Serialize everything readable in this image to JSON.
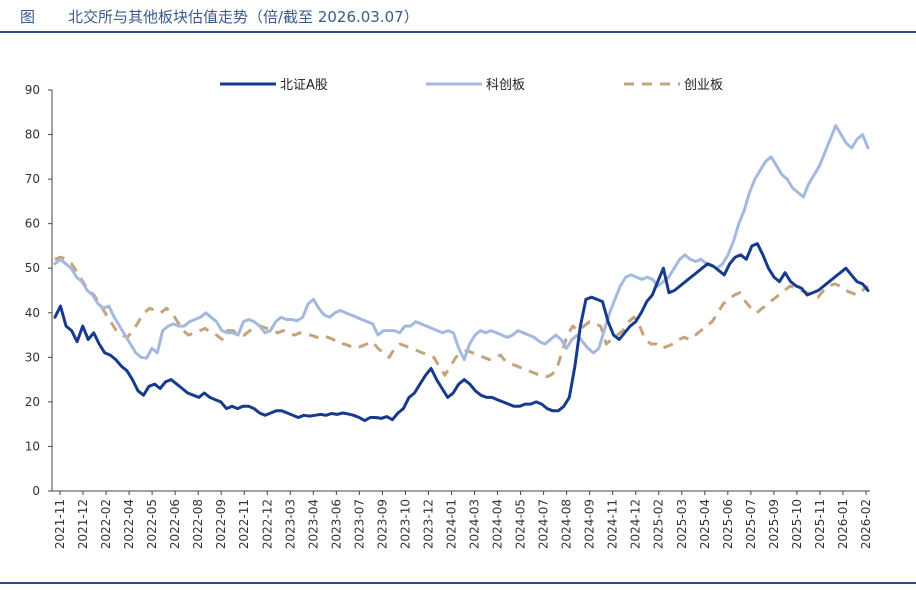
{
  "header": {
    "figure_label": "图",
    "title": "北交所与其他板块估值走势（倍/截至 2026.03.07）"
  },
  "chart_data": {
    "type": "line",
    "title": "北交所与其他板块估值走势（倍/截至 2026.03.07）",
    "xlabel": "",
    "ylabel": "",
    "ylim": [
      0,
      90
    ],
    "yticks": [
      0,
      10,
      20,
      30,
      40,
      50,
      60,
      70,
      80,
      90
    ],
    "grid": false,
    "legend_position": "top",
    "x_ticks": [
      "2021-11",
      "2021-12",
      "2022-02",
      "2022-04",
      "2022-05",
      "2022-06",
      "2022-08",
      "2022-09",
      "2022-11",
      "2022-12",
      "2023-03",
      "2023-04",
      "2023-06",
      "2023-07",
      "2023-09",
      "2023-10",
      "2023-12",
      "2024-01",
      "2024-03",
      "2024-04",
      "2024-05",
      "2024-07",
      "2024-08",
      "2024-09",
      "2024-11",
      "2024-12",
      "2025-02",
      "2025-03",
      "2025-04",
      "2025-06",
      "2025-07",
      "2025-09",
      "2025-10",
      "2025-11",
      "2026-01",
      "2026-02"
    ],
    "series": [
      {
        "name": "北证A股",
        "color": "#163b8c",
        "style": "solid",
        "values": [
          39,
          41.5,
          37,
          36,
          33.5,
          37,
          34,
          35.5,
          33,
          31,
          30.5,
          29.5,
          28,
          27,
          25,
          22.5,
          21.5,
          23.5,
          24,
          23,
          24.5,
          25,
          24,
          23,
          22,
          21.5,
          21,
          22,
          21,
          20.5,
          20,
          18.5,
          19,
          18.5,
          19,
          19,
          18.5,
          17.5,
          17,
          17.5,
          18,
          18,
          17.5,
          17,
          16.5,
          17,
          16.8,
          17,
          17.2,
          17,
          17.4,
          17.2,
          17.5,
          17.3,
          17,
          16.5,
          15.8,
          16.5,
          16.5,
          16.3,
          16.7,
          16,
          17.5,
          18.5,
          21,
          22,
          24,
          26,
          27.5,
          25,
          23,
          21,
          22,
          24,
          25,
          24,
          22.5,
          21.5,
          21,
          21,
          20.5,
          20,
          19.5,
          19,
          19,
          19.5,
          19.5,
          20,
          19.5,
          18.5,
          18,
          18,
          19,
          21,
          28,
          37,
          43,
          43.5,
          43,
          42.5,
          38,
          35,
          34,
          35.5,
          37,
          38,
          40,
          42.5,
          44,
          47,
          50,
          44.5,
          45,
          46,
          47,
          48,
          49,
          50,
          51,
          50.5,
          49.5,
          48.5,
          51,
          52.5,
          53,
          52,
          55,
          55.5,
          53,
          50,
          48,
          47,
          49,
          47,
          46,
          45.5,
          44,
          44.5,
          45,
          46,
          47,
          48,
          49,
          50,
          48.5,
          47,
          46.5,
          45
        ]
      },
      {
        "name": "科创板",
        "color": "#a3b9e0",
        "style": "solid",
        "values": [
          51,
          52,
          51,
          50,
          48,
          47,
          45,
          44,
          42,
          41,
          41.5,
          39,
          37,
          35,
          33,
          31,
          30,
          29.8,
          32,
          31,
          36,
          37,
          37.5,
          37,
          37,
          38,
          38.5,
          39,
          40,
          39,
          38,
          36,
          35.5,
          35.5,
          35,
          38,
          38.5,
          38,
          37,
          35.5,
          36,
          38,
          39,
          38.5,
          38.5,
          38.2,
          39,
          42,
          43,
          41,
          39.5,
          39,
          40,
          40.5,
          40,
          39.5,
          39,
          38.5,
          38,
          37.5,
          35,
          36,
          36,
          36,
          35.5,
          37,
          37,
          38,
          37.5,
          37,
          36.5,
          36,
          35.5,
          36,
          35.5,
          32,
          29.5,
          33,
          35,
          36,
          35.5,
          36,
          35.5,
          35,
          34.5,
          35,
          36,
          35.5,
          35,
          34.5,
          33.5,
          33,
          34,
          35,
          34,
          32,
          34,
          35,
          33.5,
          32,
          31,
          32,
          36,
          40,
          43,
          46,
          48,
          48.5,
          48,
          47.5,
          48,
          47.5,
          46,
          47,
          48,
          50,
          52,
          53,
          52,
          51.5,
          52,
          51,
          50.5,
          50,
          51,
          53,
          56,
          60,
          63,
          67,
          70,
          72,
          74,
          75,
          73,
          71,
          70,
          68,
          67,
          66,
          69,
          71,
          73,
          76,
          79,
          82,
          80,
          78,
          77,
          79,
          80,
          77
        ]
      },
      {
        "name": "创业板",
        "color": "#c2a57a",
        "style": "dashed",
        "values": [
          52,
          52.5,
          52,
          51,
          49,
          47,
          45,
          44,
          42,
          40,
          38,
          36,
          35,
          34.5,
          36,
          38,
          40,
          41,
          40.5,
          40,
          41,
          40,
          38,
          36,
          35,
          35.5,
          36,
          36.5,
          35.5,
          35,
          34,
          36,
          36,
          35,
          35,
          36,
          36.5,
          37,
          36.5,
          36,
          35.5,
          36,
          35.5,
          35,
          35.5,
          35,
          35,
          34.5,
          35,
          34.5,
          34,
          33,
          33,
          32.5,
          32,
          32.5,
          33,
          33.5,
          32,
          31,
          30,
          32,
          33,
          32.5,
          32,
          31.5,
          31,
          30.5,
          30,
          28,
          26,
          28,
          30,
          31,
          31.5,
          31,
          30.5,
          30,
          29.5,
          30,
          30.5,
          29,
          28.5,
          28,
          27.5,
          27,
          26.5,
          26,
          25.5,
          26,
          27,
          31,
          35,
          37,
          36,
          37,
          38,
          37.5,
          37,
          33,
          34,
          35,
          36,
          38,
          39,
          37,
          34,
          33,
          33,
          32,
          32.5,
          33,
          34,
          34.5,
          34,
          35,
          36,
          37,
          38,
          40,
          42,
          43,
          44,
          44.5,
          42.5,
          41,
          40,
          41,
          42,
          43,
          44,
          45,
          46,
          45.5,
          45,
          44.5,
          44,
          43.5,
          45,
          46,
          46.5,
          46,
          45,
          44.5,
          44,
          45,
          46
        ]
      }
    ]
  }
}
